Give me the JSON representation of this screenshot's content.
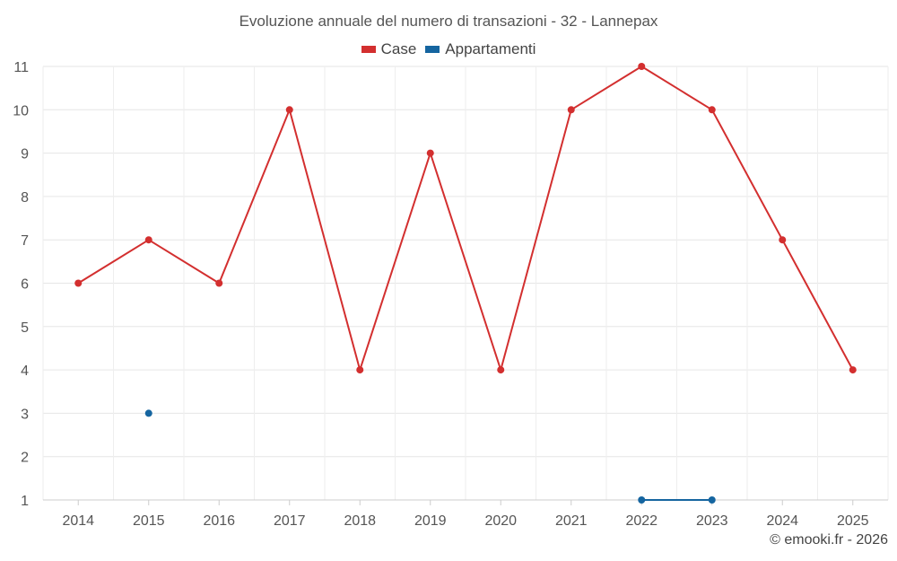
{
  "credit": "© emooki.fr - 2026",
  "chart_data": {
    "type": "line",
    "title": "Evoluzione annuale del numero di transazioni - 32 - Lannepax",
    "xlabel": "",
    "ylabel": "",
    "categories": [
      "2014",
      "2015",
      "2016",
      "2017",
      "2018",
      "2019",
      "2020",
      "2021",
      "2022",
      "2023",
      "2024",
      "2025"
    ],
    "yticks": [
      1,
      2,
      3,
      4,
      5,
      6,
      7,
      8,
      9,
      10,
      11
    ],
    "ylim": [
      1,
      11
    ],
    "grid": true,
    "legend_position": "top-center",
    "series": [
      {
        "name": "Case",
        "color": "#d32f2f",
        "values": [
          6,
          7,
          6,
          10,
          4,
          9,
          4,
          10,
          11,
          10,
          7,
          4
        ]
      },
      {
        "name": "Appartamenti",
        "color": "#1565a0",
        "values": [
          null,
          3,
          null,
          null,
          null,
          null,
          null,
          null,
          1,
          1,
          null,
          null
        ]
      }
    ]
  }
}
